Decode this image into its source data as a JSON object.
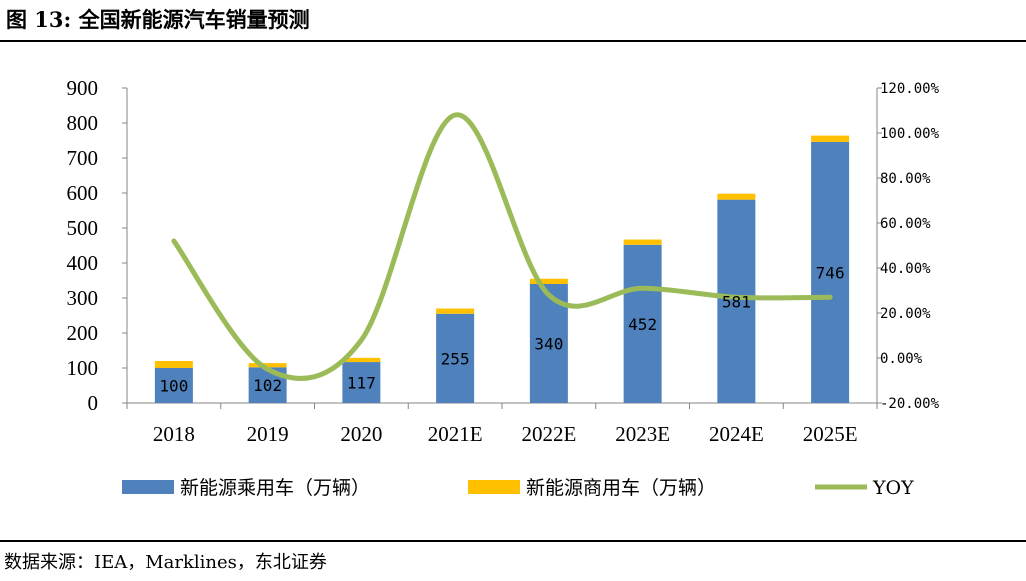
{
  "figure": {
    "title": "图 13: 全国新能源汽车销量预测",
    "source": "数据来源：IEA，Marklines，东北证券"
  },
  "chart_data": {
    "type": "bar",
    "stacked": true,
    "categories": [
      "2018",
      "2019",
      "2020",
      "2021E",
      "2022E",
      "2023E",
      "2024E",
      "2025E"
    ],
    "series": [
      {
        "name": "新能源乘用车（万辆）",
        "type": "bar",
        "axis": "left",
        "color": "#4f81bd",
        "values": [
          100,
          102,
          117,
          255,
          340,
          452,
          581,
          746
        ],
        "data_labels": [
          "100",
          "102",
          "117",
          "255",
          "340",
          "452",
          "581",
          "746"
        ]
      },
      {
        "name": "新能源商用车（万辆）",
        "type": "bar",
        "axis": "left",
        "color": "#ffc000",
        "values": [
          20,
          12,
          12,
          15,
          15,
          15,
          17,
          18
        ]
      },
      {
        "name": "YOY",
        "type": "line",
        "axis": "right",
        "color": "#9bbb59",
        "values": [
          0.52,
          -0.05,
          0.08,
          1.08,
          0.28,
          0.31,
          0.27,
          0.27
        ]
      }
    ],
    "y_left": {
      "min": 0,
      "max": 900,
      "step": 100,
      "ticks": [
        "0",
        "100",
        "200",
        "300",
        "400",
        "500",
        "600",
        "700",
        "800",
        "900"
      ]
    },
    "y_right": {
      "min": -0.2,
      "max": 1.2,
      "step": 0.2,
      "ticks": [
        "-20.00%",
        "0.00%",
        "20.00%",
        "40.00%",
        "60.00%",
        "80.00%",
        "100.00%",
        "120.00%"
      ]
    },
    "grid": false,
    "legend": "bottom"
  }
}
